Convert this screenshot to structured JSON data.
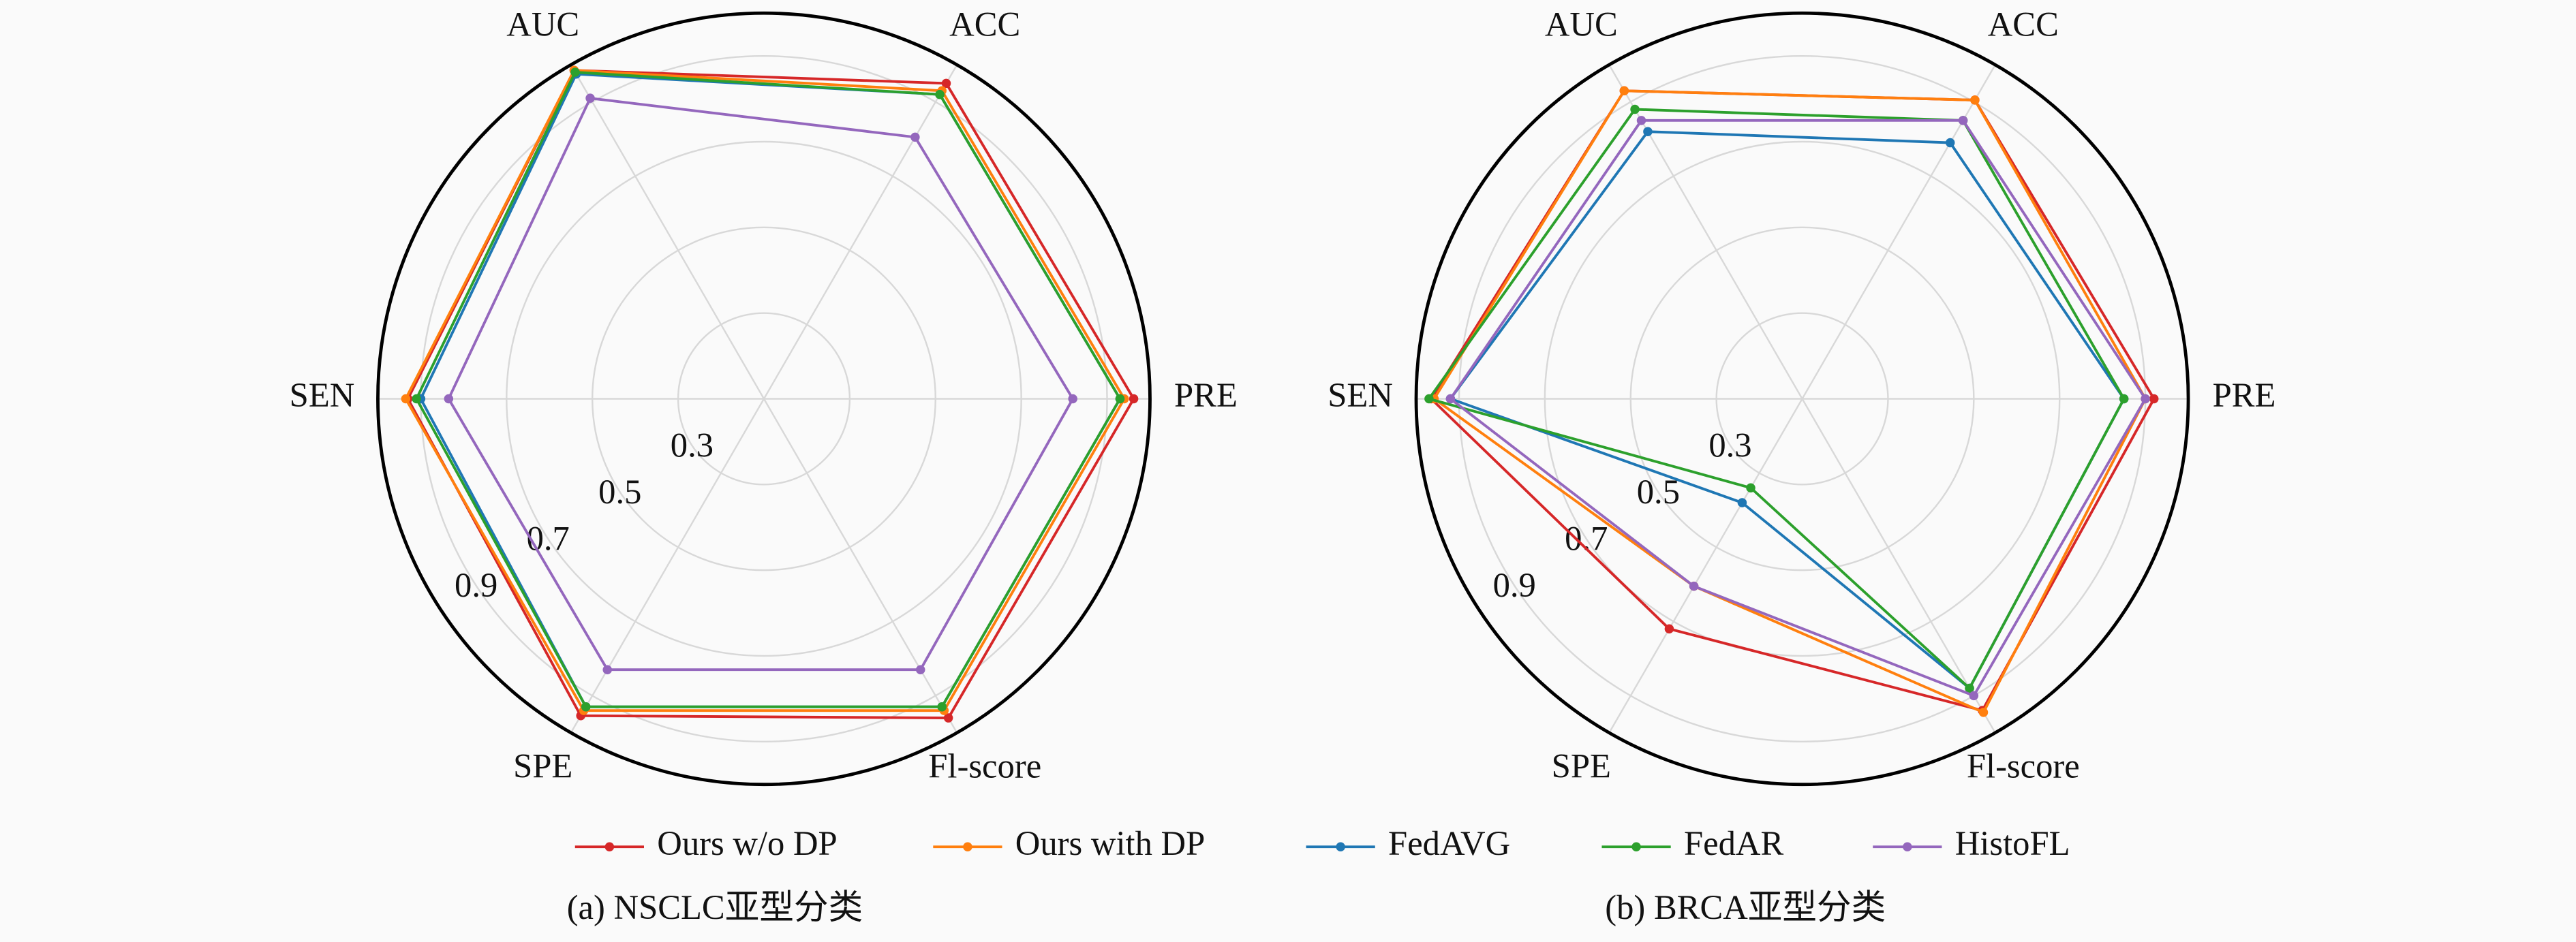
{
  "chart_data": [
    {
      "type": "radar",
      "caption": "(a) NSCLC亚型分类",
      "categories": [
        "PRE",
        "ACC",
        "AUC",
        "SEN",
        "SPE",
        "Fl-score"
      ],
      "ylim": [
        0.1,
        1.0
      ],
      "yticks": [
        0.3,
        0.5,
        0.7,
        0.9
      ],
      "grid": true,
      "series": [
        {
          "name": "Ours w/o DP",
          "color": "#d62728",
          "values": [
            0.962,
            0.95,
            0.985,
            0.93,
            0.954,
            0.96
          ]
        },
        {
          "name": "Ours with DP",
          "color": "#ff7f0e",
          "values": [
            0.94,
            0.93,
            0.985,
            0.935,
            0.94,
            0.94
          ]
        },
        {
          "name": "FedAVG",
          "color": "#1f77b4",
          "values": [
            0.93,
            0.92,
            0.975,
            0.9,
            0.93,
            0.93
          ]
        },
        {
          "name": "FedAR",
          "color": "#2ca02c",
          "values": [
            0.93,
            0.92,
            0.98,
            0.91,
            0.93,
            0.93
          ]
        },
        {
          "name": "HistoFL",
          "color": "#9467bd",
          "values": [
            0.82,
            0.805,
            0.91,
            0.835,
            0.83,
            0.83
          ]
        }
      ]
    },
    {
      "type": "radar",
      "caption": "(b) BRCA亚型分类",
      "categories": [
        "PRE",
        "ACC",
        "AUC",
        "SEN",
        "SPE",
        "Fl-score"
      ],
      "ylim": [
        0.1,
        1.0
      ],
      "yticks": [
        0.3,
        0.5,
        0.7,
        0.9
      ],
      "grid": true,
      "series": [
        {
          "name": "Ours w/o DP",
          "color": "#d62728",
          "values": [
            0.92,
            0.905,
            0.93,
            0.965,
            0.72,
            0.94
          ]
        },
        {
          "name": "Ours with DP",
          "color": "#ff7f0e",
          "values": [
            0.9,
            0.905,
            0.93,
            0.958,
            0.605,
            0.945
          ]
        },
        {
          "name": "FedAVG",
          "color": "#1f77b4",
          "values": [
            0.85,
            0.79,
            0.82,
            0.92,
            0.38,
            0.88
          ]
        },
        {
          "name": "FedAR",
          "color": "#2ca02c",
          "values": [
            0.85,
            0.85,
            0.88,
            0.97,
            0.34,
            0.88
          ]
        },
        {
          "name": "HistoFL",
          "color": "#9467bd",
          "values": [
            0.9,
            0.85,
            0.85,
            0.92,
            0.605,
            0.9
          ]
        }
      ]
    }
  ]
}
